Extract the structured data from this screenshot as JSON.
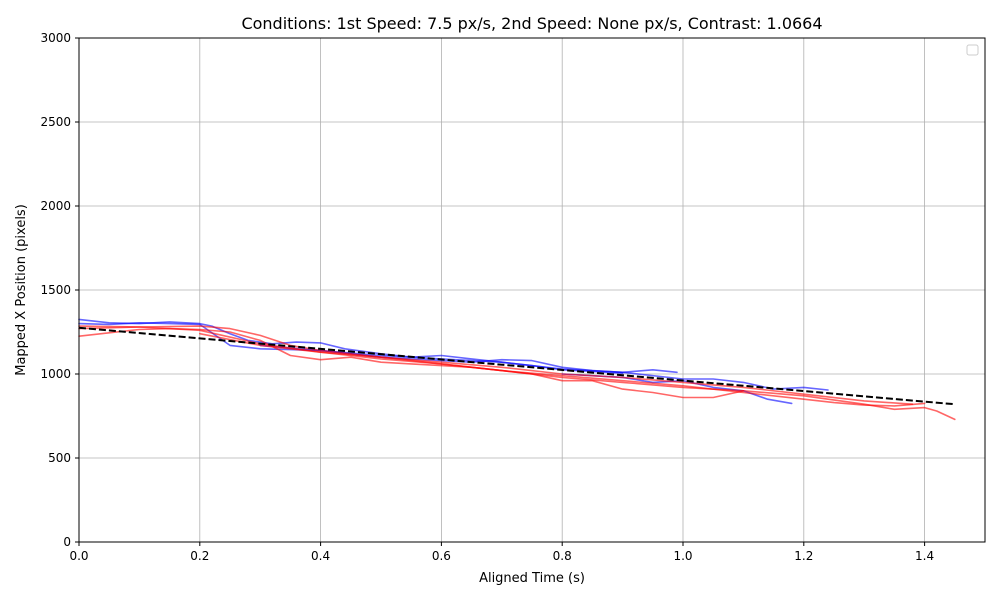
{
  "chart_data": {
    "type": "line",
    "title": "Conditions: 1st Speed: 7.5 px/s, 2nd Speed: None px/s, Contrast: 1.0664",
    "xlabel": "Aligned Time (s)",
    "ylabel": "Mapped X Position (pixels)",
    "xlim": [
      0,
      1.5
    ],
    "ylim": [
      0,
      3000
    ],
    "xticks": [
      0.0,
      0.2,
      0.4,
      0.6,
      0.8,
      1.0,
      1.2,
      1.4
    ],
    "xtick_labels": [
      "0.0",
      "0.2",
      "0.4",
      "0.6",
      "0.8",
      "1.0",
      "1.2",
      "1.4"
    ],
    "yticks": [
      0,
      500,
      1000,
      1500,
      2000,
      2500,
      3000
    ],
    "ytick_labels": [
      "0",
      "500",
      "1000",
      "1500",
      "2000",
      "2500",
      "3000"
    ],
    "grid": true,
    "legend": "top-right",
    "colors": {
      "blue": "#0000ff",
      "red": "#ff0000",
      "fit": "#000000",
      "grid": "#b0b0b0"
    },
    "series": [
      {
        "color": "blue",
        "x": [
          0.0,
          0.05,
          0.1,
          0.15,
          0.2,
          0.22,
          0.25,
          0.28,
          0.32,
          0.36,
          0.4,
          0.44,
          0.5,
          0.55,
          0.6,
          0.65,
          0.7,
          0.75,
          0.8,
          0.85,
          0.9
        ],
        "y": [
          1325,
          1305,
          1300,
          1310,
          1300,
          1285,
          1240,
          1200,
          1180,
          1190,
          1185,
          1150,
          1120,
          1100,
          1110,
          1090,
          1070,
          1050,
          1025,
          1015,
          1005
        ]
      },
      {
        "color": "blue",
        "x": [
          0.0,
          0.05,
          0.1,
          0.15,
          0.2,
          0.25,
          0.3,
          0.35,
          0.4,
          0.45,
          0.5,
          0.55,
          0.6,
          0.65,
          0.7,
          0.75,
          0.8,
          0.85,
          0.9,
          0.95,
          0.99
        ],
        "y": [
          1300,
          1295,
          1305,
          1300,
          1295,
          1170,
          1150,
          1145,
          1140,
          1120,
          1100,
          1090,
          1080,
          1070,
          1085,
          1080,
          1040,
          1020,
          1010,
          1025,
          1010
        ]
      },
      {
        "color": "blue",
        "x": [
          0.3,
          0.4,
          0.5,
          0.6,
          0.7,
          0.8,
          0.9,
          1.0,
          1.05,
          1.1,
          1.15,
          1.2,
          1.24
        ],
        "y": [
          1170,
          1140,
          1110,
          1090,
          1070,
          1030,
          1010,
          970,
          970,
          950,
          910,
          920,
          905
        ]
      },
      {
        "color": "blue",
        "x": [
          0.8,
          0.85,
          0.9,
          0.95,
          1.0,
          1.05,
          1.1,
          1.14,
          1.18
        ],
        "y": [
          1000,
          990,
          980,
          950,
          960,
          920,
          900,
          850,
          825
        ]
      },
      {
        "color": "red",
        "x": [
          0.0,
          0.05,
          0.1,
          0.15,
          0.2,
          0.25,
          0.3,
          0.35,
          0.4,
          0.45,
          0.5,
          0.55,
          0.6,
          0.65,
          0.7,
          0.75,
          0.8,
          0.85,
          0.9,
          0.95,
          1.0,
          1.05,
          1.1
        ],
        "y": [
          1225,
          1245,
          1265,
          1270,
          1265,
          1250,
          1200,
          1110,
          1085,
          1100,
          1070,
          1060,
          1050,
          1040,
          1020,
          1000,
          960,
          960,
          910,
          890,
          860,
          860,
          900
        ]
      },
      {
        "color": "red",
        "x": [
          0.0,
          0.1,
          0.2,
          0.25,
          0.3,
          0.35,
          0.4,
          0.5,
          0.6,
          0.7,
          0.8,
          0.9,
          1.0,
          1.1,
          1.2,
          1.3,
          1.35,
          1.4,
          1.42,
          1.45
        ],
        "y": [
          1270,
          1280,
          1285,
          1270,
          1230,
          1170,
          1140,
          1100,
          1060,
          1020,
          980,
          950,
          920,
          900,
          870,
          820,
          790,
          800,
          780,
          730
        ]
      },
      {
        "color": "red",
        "x": [
          0.0,
          0.1,
          0.2,
          0.3,
          0.4,
          0.5,
          0.6,
          0.7,
          0.8,
          0.9,
          1.0,
          1.1,
          1.2,
          1.25,
          1.3,
          1.35,
          1.4
        ],
        "y": [
          1285,
          1280,
          1260,
          1180,
          1130,
          1090,
          1060,
          1020,
          990,
          960,
          930,
          890,
          850,
          830,
          815,
          810,
          825
        ]
      },
      {
        "color": "red",
        "x": [
          0.2,
          0.3,
          0.4,
          0.5,
          0.6,
          0.7,
          0.8,
          0.9,
          1.0,
          1.1,
          1.2,
          1.3,
          1.38
        ],
        "y": [
          1240,
          1170,
          1130,
          1100,
          1070,
          1040,
          1000,
          980,
          950,
          920,
          880,
          840,
          820
        ]
      }
    ],
    "fit_line": {
      "style": "dashed",
      "x": [
        0.0,
        1.45
      ],
      "y": [
        1275,
        820
      ]
    }
  }
}
